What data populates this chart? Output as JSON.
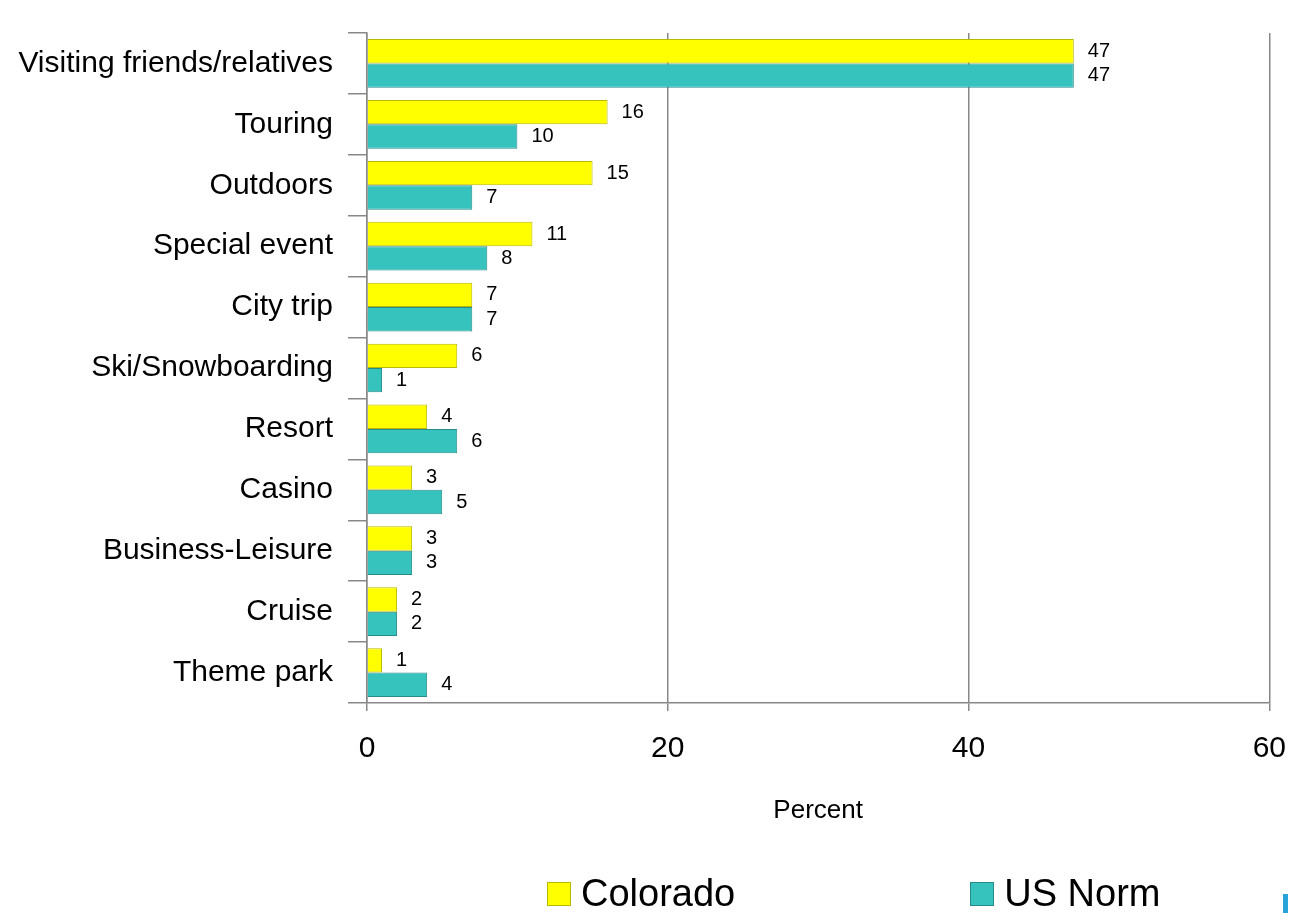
{
  "chart_data": {
    "type": "bar",
    "orientation": "horizontal",
    "categories": [
      "Visiting friends/relatives",
      "Touring",
      "Outdoors",
      "Special event",
      "City trip",
      "Ski/Snowboarding",
      "Resort",
      "Casino",
      "Business-Leisure",
      "Cruise",
      "Theme park"
    ],
    "series": [
      {
        "name": "Colorado",
        "color": "#ffff00",
        "values": [
          47,
          16,
          15,
          11,
          7,
          6,
          4,
          3,
          3,
          2,
          1
        ]
      },
      {
        "name": "US Norm",
        "color": "#36c3be",
        "values": [
          47,
          10,
          7,
          8,
          7,
          1,
          6,
          5,
          3,
          2,
          4
        ]
      }
    ],
    "xlabel": "Percent",
    "xlim": [
      0,
      60
    ],
    "xticks": [
      0,
      20,
      40,
      60
    ],
    "grid": "x",
    "legend": "bottom",
    "data_labels": true
  }
}
